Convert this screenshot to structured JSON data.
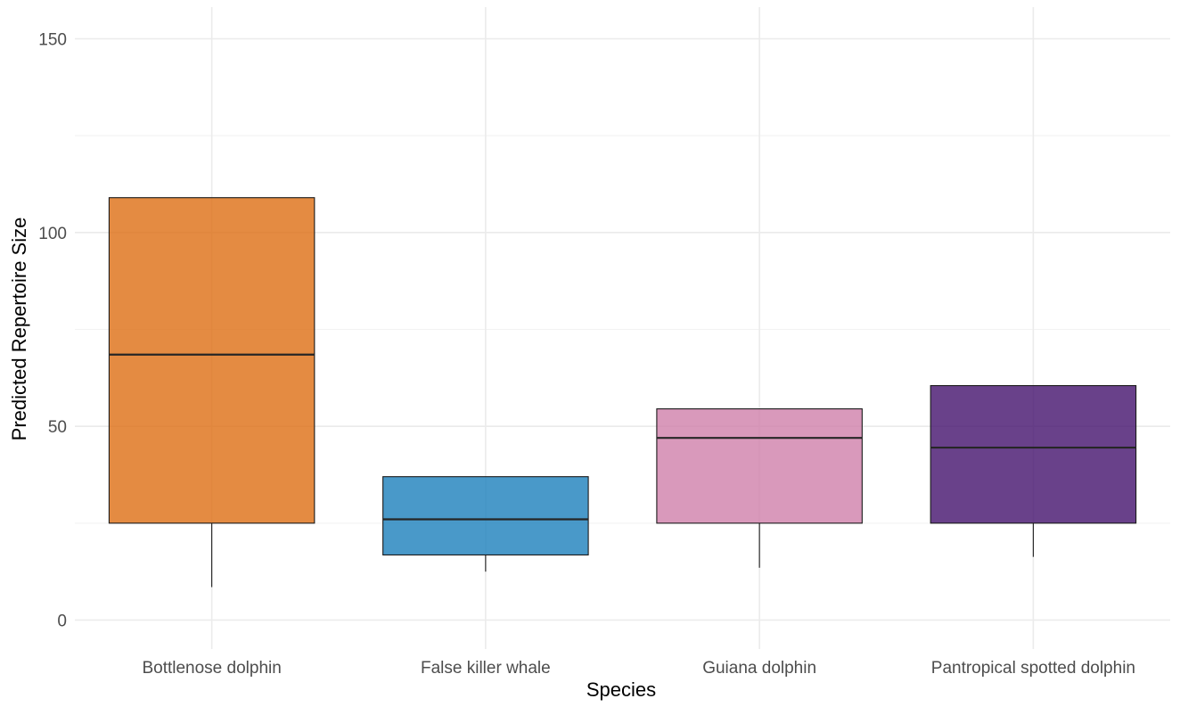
{
  "chart_data": {
    "type": "box",
    "xlabel": "Species",
    "ylabel": "Predicted Repertoire Size",
    "ylim": [
      -7.5,
      157.5
    ],
    "yticks": [
      0,
      50,
      100,
      150
    ],
    "grid": true,
    "categories": [
      "Bottlenose dolphin",
      "False killer whale",
      "Guiana dolphin",
      "Pantropical spotted dolphin"
    ],
    "boxes": [
      {
        "category": "Bottlenose dolphin",
        "min": 8.5,
        "q1": 25,
        "median": 68.5,
        "q3": 109,
        "max": 109,
        "color": "#DD6E13"
      },
      {
        "category": "False killer whale",
        "min": 12.5,
        "q1": 16.8,
        "median": 26,
        "q3": 37,
        "max": 37,
        "color": "#1B7FBB"
      },
      {
        "category": "Guiana dolphin",
        "min": 13.5,
        "q1": 25,
        "median": 47,
        "q3": 54.5,
        "max": 54.5,
        "color": "#CF7FAA"
      },
      {
        "category": "Pantropical spotted dolphin",
        "min": 16.3,
        "q1": 25,
        "median": 44.5,
        "q3": 60.5,
        "max": 60.5,
        "color": "#44116D"
      }
    ]
  }
}
